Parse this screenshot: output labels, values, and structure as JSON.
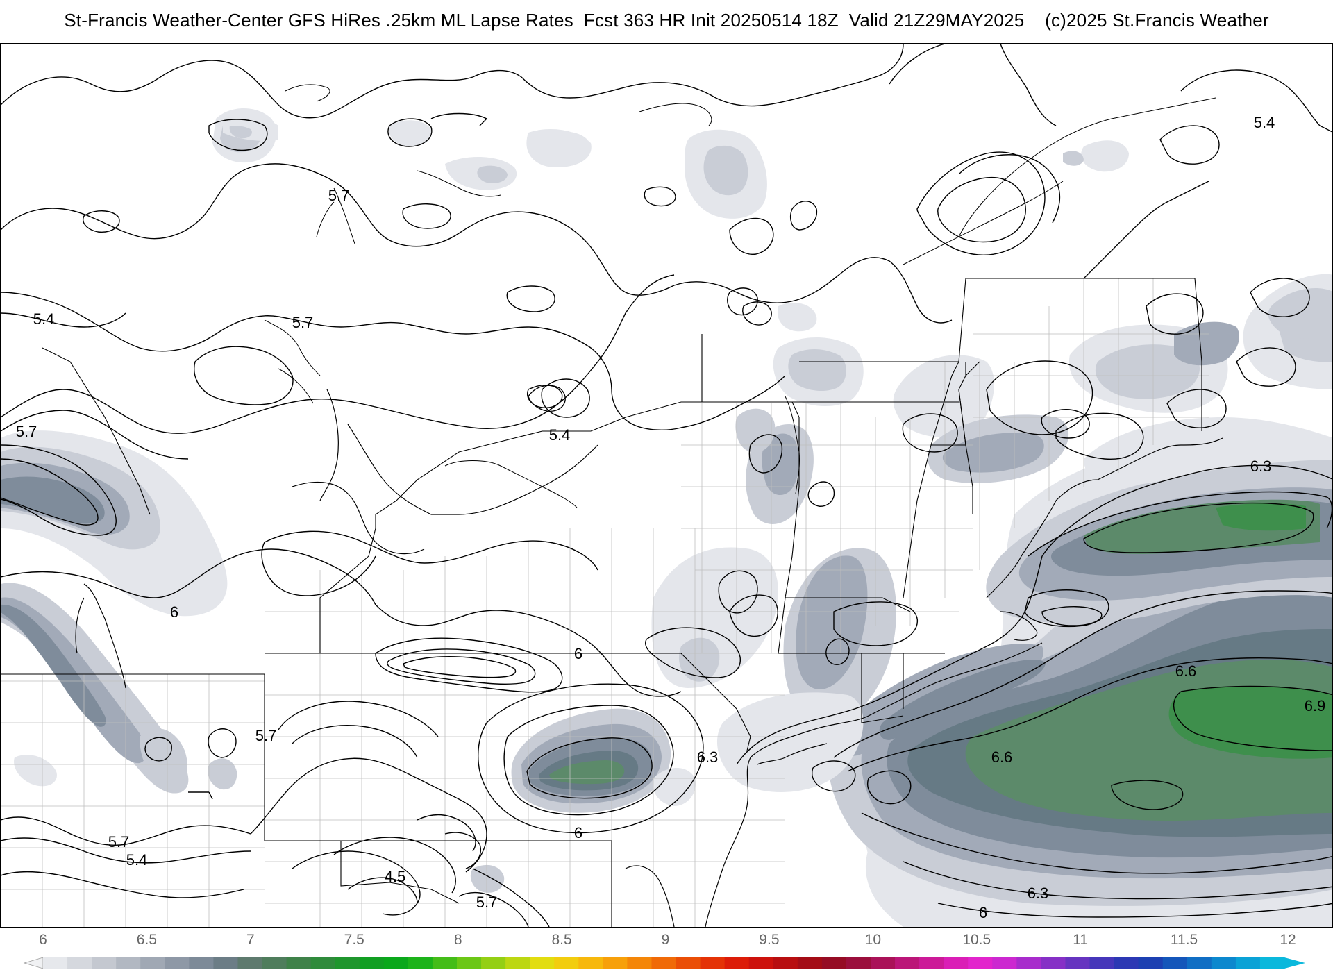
{
  "header": {
    "title": "St-Francis Weather-Center GFS HiRes .25km ML Lapse Rates  Fcst 363 HR Init 20250514 18Z  Valid 21Z29MAY2025    (c)2025 St.Francis Weather"
  },
  "map": {
    "region": "Northeastern United States and southeastern Canada",
    "contour_labels": [
      "5.4",
      "5.7",
      "5.4",
      "5.7",
      "5.7",
      "5.4",
      "6",
      "5.7",
      "5.7",
      "5.4",
      "4.5",
      "5.7",
      "6",
      "6.3",
      "6",
      "6.3",
      "6.6",
      "6.6",
      "6.9",
      "6.3",
      "6"
    ],
    "shading_colors": {
      "lightest": "#e4e6eb",
      "light": "#c9cdd6",
      "medium": "#a2aab8",
      "dark": "#7f8c9b",
      "slate": "#667a85",
      "green_gray": "#5c8a6a",
      "green": "#3e8f4c"
    }
  },
  "colorbar": {
    "ticks": [
      "6",
      "6.5",
      "7",
      "7.5",
      "8",
      "8.5",
      "9",
      "9.5",
      "10",
      "10.5",
      "11",
      "11.5",
      "12"
    ],
    "colors": [
      "#e6e8ec",
      "#d5d8de",
      "#c4c8d0",
      "#b2b8c2",
      "#a0a8b4",
      "#8e98a6",
      "#7d8a98",
      "#6c7d86",
      "#5e7a6e",
      "#4f7d5c",
      "#3f8249",
      "#2f8b3b",
      "#1f962d",
      "#119f22",
      "#0aa81b",
      "#1cb31a",
      "#44bd18",
      "#6cc716",
      "#94cf14",
      "#bcd712",
      "#e2dd10",
      "#f2cd0e",
      "#f7b80c",
      "#f7a00a",
      "#f48608",
      "#f06a07",
      "#ea4e06",
      "#e43206",
      "#dc1c08",
      "#cd120c",
      "#b80e10",
      "#a40c16",
      "#960c24",
      "#9b0f3c",
      "#aa1258",
      "#bb1678",
      "#cc1a98",
      "#da1eb6",
      "#e224cc",
      "#cc28d0",
      "#a82ccc",
      "#8630c6",
      "#6634c0",
      "#4636ba",
      "#2c38b4",
      "#1c40b2",
      "#1456ba",
      "#106ec4",
      "#0c88ce",
      "#0aa2d6",
      "#0ab8dc"
    ]
  }
}
